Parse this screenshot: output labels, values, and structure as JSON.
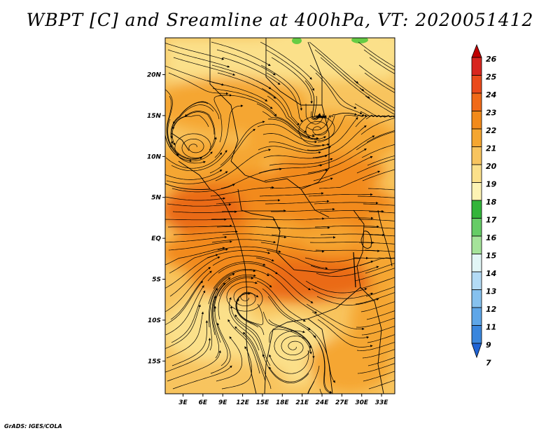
{
  "title": "WBPT [C] and Sreamline at 400hPa, VT: 2020051412",
  "credit": "GrADS: IGES/COLA",
  "map": {
    "lat_labels": [
      "20N",
      "15N",
      "10N",
      "5N",
      "EQ",
      "5S",
      "10S",
      "15S"
    ],
    "lon_labels": [
      "3E",
      "6E",
      "9E",
      "12E",
      "15E",
      "18E",
      "21E",
      "24E",
      "27E",
      "30E",
      "33E"
    ],
    "lat_range": [
      -19,
      24.5
    ],
    "lon_range": [
      0.3,
      35.0
    ],
    "colorbar_levels": [
      "26",
      "25",
      "24",
      "23",
      "22",
      "21",
      "20",
      "19",
      "18",
      "17",
      "16",
      "15",
      "14",
      "13",
      "12",
      "11",
      "9",
      "7"
    ],
    "colorbar_colors": [
      "#c00000",
      "#d8261f",
      "#ea4a1b",
      "#f06a18",
      "#f28a1a",
      "#f5a630",
      "#f8c45e",
      "#fbe08a",
      "#fdf3b4",
      "#33b53a",
      "#66cc66",
      "#a5e39a",
      "#e2f6f6",
      "#b3dbf5",
      "#86c1ee",
      "#5ea6e8",
      "#3a86dd",
      "#1f63d4"
    ],
    "field_colors": {
      "tan_light": "#fbe08a",
      "tan": "#f8c45e",
      "orange_light": "#f5a630",
      "orange": "#f28a1a",
      "orange_deep": "#ea6a18",
      "green": "#66cc44"
    }
  }
}
